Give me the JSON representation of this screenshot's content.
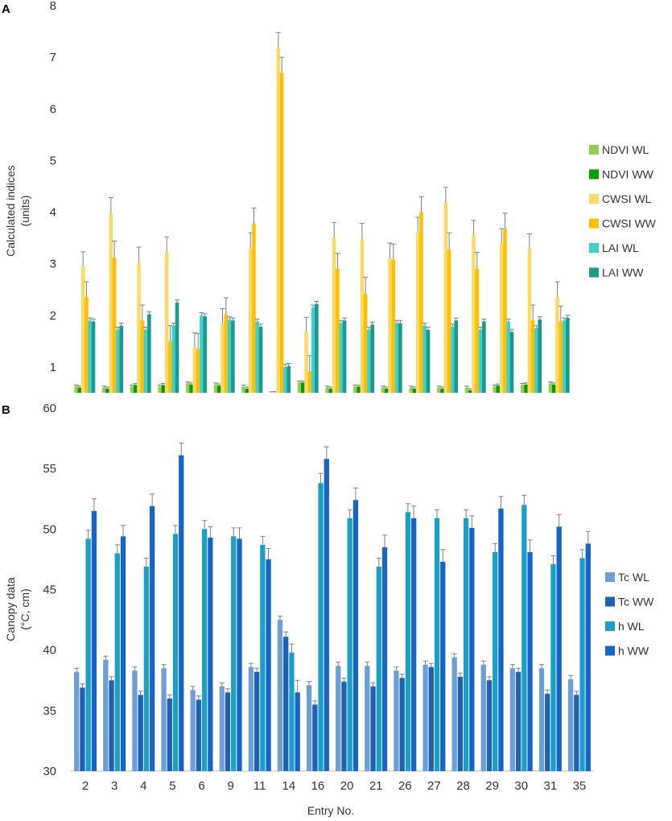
{
  "panel_labels": [
    "A",
    "B"
  ],
  "chart_data": [
    {
      "type": "bar",
      "panel": "A",
      "title": "",
      "ylabel_lines": [
        "Calculated indices",
        "(units)"
      ],
      "xlabel": "",
      "categories": [
        "2",
        "3",
        "4",
        "5",
        "6",
        "9",
        "11",
        "14",
        "16",
        "20",
        "21",
        "26",
        "27",
        "28",
        "29",
        "30",
        "31",
        "35"
      ],
      "ylim": [
        0.5,
        8
      ],
      "yticks": [
        1,
        2,
        3,
        4,
        5,
        6,
        7,
        8
      ],
      "series": [
        {
          "name": "NDVI WL",
          "color": "#92d050",
          "values": [
            0.62,
            0.6,
            0.62,
            0.62,
            0.68,
            0.66,
            0.62,
            0.5,
            0.7,
            0.6,
            0.62,
            0.6,
            0.6,
            0.6,
            0.6,
            0.62,
            0.65,
            0.68
          ],
          "errors": [
            0.03,
            0.03,
            0.03,
            0.03,
            0.03,
            0.03,
            0.03,
            0.02,
            0.03,
            0.03,
            0.03,
            0.03,
            0.03,
            0.03,
            0.03,
            0.03,
            0.03,
            0.03
          ]
        },
        {
          "name": "NDVI WW",
          "color": "#00a000",
          "values": [
            0.6,
            0.58,
            0.65,
            0.65,
            0.66,
            0.64,
            0.58,
            0.5,
            0.7,
            0.58,
            0.62,
            0.58,
            0.58,
            0.58,
            0.55,
            0.64,
            0.66,
            0.66
          ],
          "errors": [
            0.03,
            0.03,
            0.03,
            0.03,
            0.03,
            0.03,
            0.03,
            0.02,
            0.03,
            0.03,
            0.03,
            0.03,
            0.03,
            0.03,
            0.03,
            0.03,
            0.03,
            0.03
          ]
        },
        {
          "name": "CWSI WL",
          "color": "#ffd966",
          "values": [
            2.95,
            3.98,
            3.02,
            3.22,
            1.38,
            1.85,
            3.3,
            7.18,
            1.68,
            3.5,
            3.48,
            3.1,
            3.6,
            4.18,
            3.56,
            3.4,
            3.3,
            2.35
          ],
          "errors": [
            0.28,
            0.3,
            0.3,
            0.3,
            0.28,
            0.28,
            0.3,
            0.3,
            0.28,
            0.3,
            0.3,
            0.3,
            0.3,
            0.3,
            0.28,
            0.28,
            0.28,
            0.3
          ]
        },
        {
          "name": "CWSI WW",
          "color": "#ffc000",
          "values": [
            2.35,
            3.12,
            1.9,
            1.5,
            1.35,
            2.02,
            3.78,
            6.7,
            0.92,
            2.9,
            2.42,
            3.08,
            4.0,
            3.28,
            2.9,
            3.68,
            1.9,
            1.88
          ],
          "errors": [
            0.3,
            0.32,
            0.3,
            0.3,
            0.3,
            0.32,
            0.3,
            0.3,
            0.3,
            0.3,
            0.32,
            0.3,
            0.3,
            0.32,
            0.32,
            0.3,
            0.3,
            0.3
          ]
        },
        {
          "name": "LAI WL",
          "color": "#3fcfcf",
          "values": [
            1.9,
            1.72,
            1.72,
            1.8,
            2.0,
            1.92,
            1.88,
            1.0,
            2.15,
            1.85,
            1.72,
            1.85,
            1.8,
            1.78,
            1.72,
            1.88,
            1.75,
            1.9
          ],
          "errors": [
            0.05,
            0.05,
            0.05,
            0.05,
            0.05,
            0.05,
            0.05,
            0.05,
            0.05,
            0.05,
            0.05,
            0.05,
            0.05,
            0.05,
            0.05,
            0.05,
            0.05,
            0.05
          ]
        },
        {
          "name": "LAI WW",
          "color": "#1a9a8a",
          "values": [
            1.88,
            1.8,
            2.02,
            2.25,
            1.98,
            1.9,
            1.78,
            1.02,
            2.22,
            1.9,
            1.82,
            1.85,
            1.72,
            1.9,
            1.88,
            1.68,
            1.92,
            1.95
          ],
          "errors": [
            0.05,
            0.05,
            0.05,
            0.05,
            0.05,
            0.05,
            0.05,
            0.05,
            0.05,
            0.05,
            0.05,
            0.05,
            0.05,
            0.05,
            0.05,
            0.05,
            0.05,
            0.05
          ]
        }
      ],
      "legend_position": "right"
    },
    {
      "type": "bar",
      "panel": "B",
      "title": "",
      "ylabel_lines": [
        "Canopy data",
        "(°C, cm)"
      ],
      "xlabel": "Entry No.",
      "categories": [
        "2",
        "3",
        "4",
        "5",
        "6",
        "9",
        "11",
        "14",
        "16",
        "20",
        "21",
        "26",
        "27",
        "28",
        "29",
        "30",
        "31",
        "35"
      ],
      "ylim": [
        30,
        60
      ],
      "yticks": [
        30,
        35,
        40,
        45,
        50,
        55,
        60
      ],
      "series": [
        {
          "name": "Tc WL",
          "color": "#6a9fd8",
          "values": [
            38.2,
            39.2,
            38.3,
            38.5,
            36.7,
            37.0,
            38.6,
            42.5,
            37.1,
            38.7,
            38.7,
            38.3,
            38.8,
            39.4,
            38.8,
            38.5,
            38.5,
            37.6
          ],
          "errors": [
            0.3,
            0.3,
            0.3,
            0.3,
            0.3,
            0.3,
            0.3,
            0.3,
            0.3,
            0.3,
            0.3,
            0.3,
            0.3,
            0.3,
            0.3,
            0.3,
            0.3,
            0.3
          ]
        },
        {
          "name": "Tc WW",
          "color": "#1f5fb4",
          "values": [
            36.9,
            37.5,
            36.3,
            36.0,
            35.9,
            36.5,
            38.2,
            41.1,
            35.5,
            37.4,
            37.0,
            37.7,
            38.6,
            37.8,
            37.5,
            38.2,
            36.4,
            36.3
          ],
          "errors": [
            0.3,
            0.3,
            0.3,
            0.3,
            0.3,
            0.3,
            0.3,
            0.4,
            0.3,
            0.3,
            0.3,
            0.3,
            0.3,
            0.3,
            0.3,
            0.3,
            0.3,
            0.3
          ]
        },
        {
          "name": "h WL",
          "color": "#1a9fc9",
          "values": [
            49.2,
            48.0,
            46.9,
            49.6,
            50.0,
            49.4,
            48.7,
            39.8,
            53.8,
            50.9,
            46.9,
            51.4,
            50.9,
            50.9,
            48.1,
            52.0,
            47.1,
            47.6
          ],
          "errors": [
            0.7,
            0.7,
            0.7,
            0.7,
            0.7,
            0.7,
            0.7,
            0.7,
            0.8,
            0.7,
            0.7,
            0.7,
            0.7,
            0.7,
            0.7,
            0.8,
            0.7,
            0.7
          ]
        },
        {
          "name": "h WW",
          "color": "#1565c8",
          "values": [
            51.5,
            49.4,
            51.9,
            56.1,
            49.3,
            49.2,
            47.5,
            36.5,
            55.8,
            52.4,
            48.5,
            50.9,
            47.3,
            50.1,
            51.7,
            48.1,
            50.2,
            48.8
          ],
          "errors": [
            1.0,
            0.9,
            1.0,
            1.0,
            0.9,
            0.9,
            0.9,
            1.0,
            1.0,
            1.0,
            1.0,
            1.0,
            1.0,
            1.0,
            1.0,
            1.0,
            1.0,
            1.0
          ]
        }
      ],
      "legend_position": "right"
    }
  ]
}
